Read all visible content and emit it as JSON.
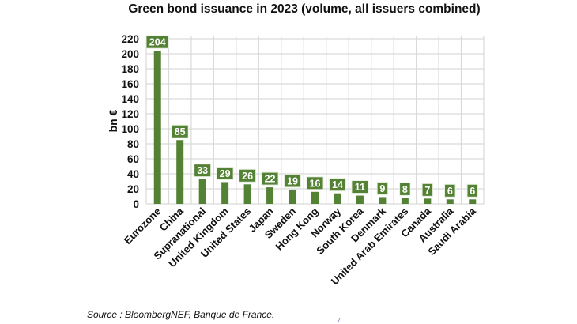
{
  "chart_data": {
    "type": "bar",
    "title": "Green bond issuance in 2023 (volume, all issuers combined)",
    "ylabel": "bn €",
    "xlabel": "",
    "ylim": [
      0,
      220
    ],
    "yticks": [
      0,
      20,
      40,
      60,
      80,
      100,
      120,
      140,
      160,
      180,
      200,
      220
    ],
    "grid": true,
    "data_labels": true,
    "bar_color": "#548235",
    "categories": [
      "Eurozone",
      "China",
      "Supranational",
      "United Kingdom",
      "United States",
      "Japan",
      "Sweden",
      "Hong Kong",
      "Norway",
      "South Korea",
      "Denmark",
      "United Arab Emirates",
      "Canada",
      "Australia",
      "Saudi Arabia"
    ],
    "values": [
      204,
      85,
      33,
      29,
      26,
      22,
      19,
      16,
      14,
      11,
      9,
      8,
      7,
      6,
      6
    ]
  },
  "footer": {
    "source": "Source : BloombergNEF, Banque de France.",
    "page_number": "7"
  }
}
